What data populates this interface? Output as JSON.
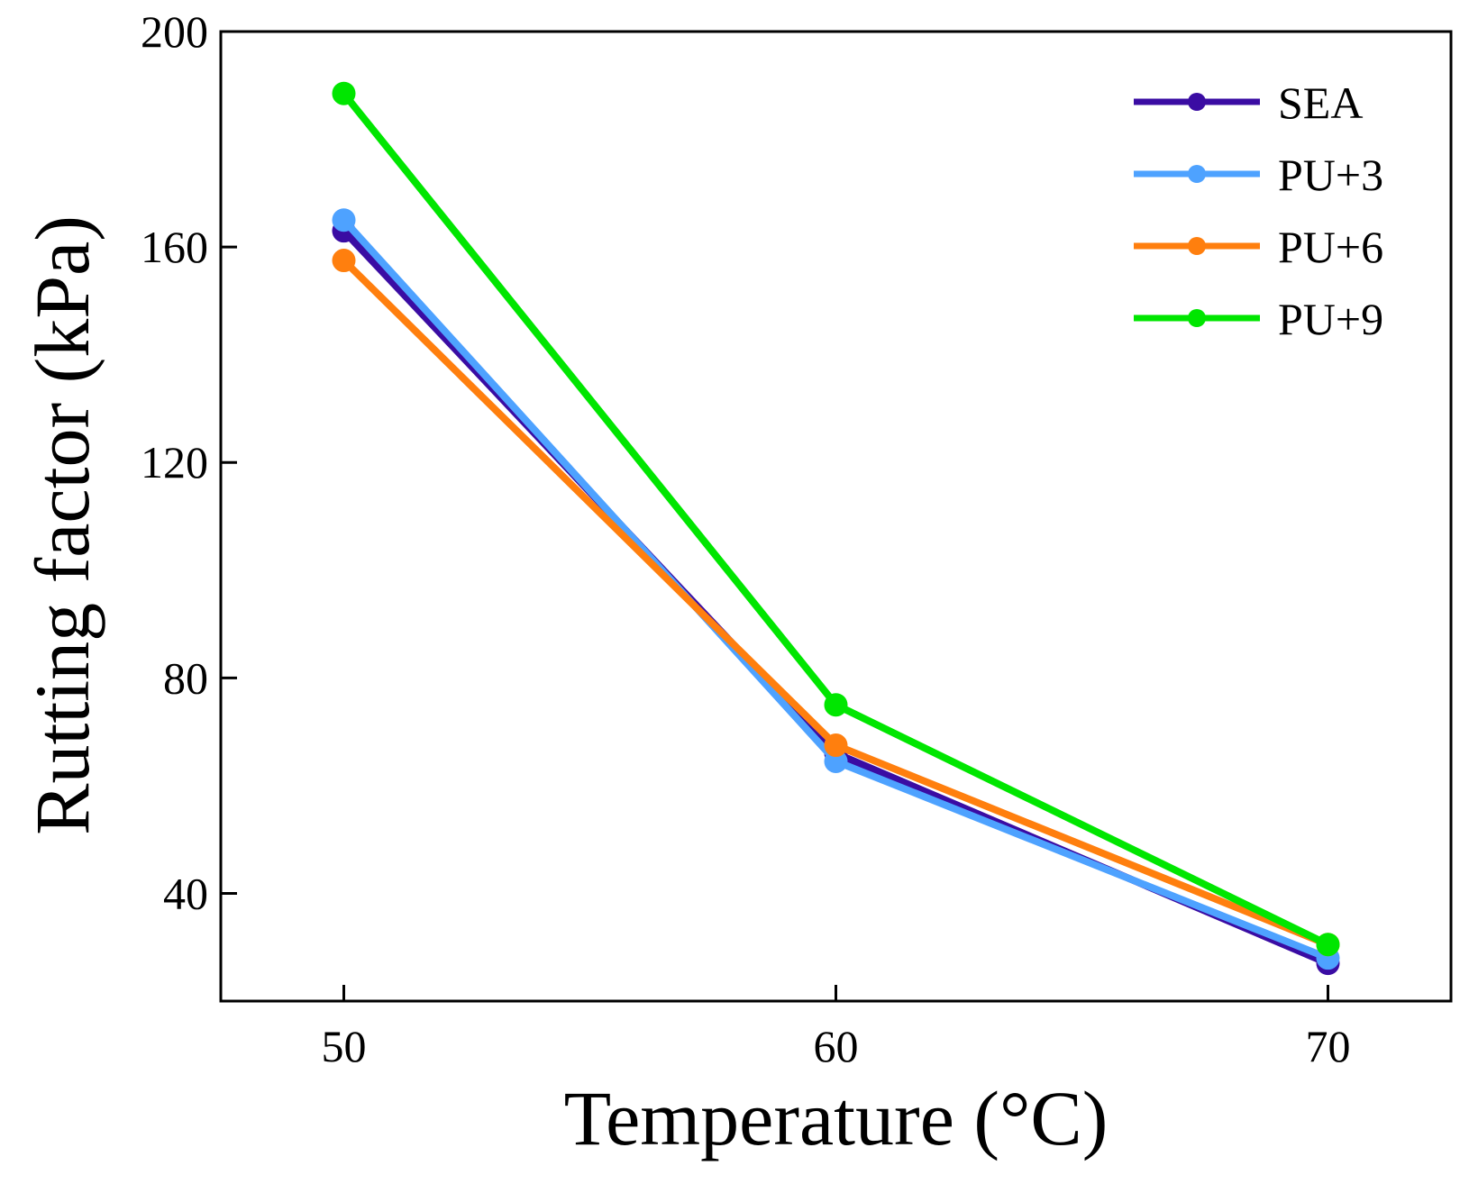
{
  "chart_data": {
    "type": "line",
    "title": "",
    "xlabel": "Temperature (°C)",
    "ylabel": "Rutting factor (kPa)",
    "x": [
      50,
      60,
      70
    ],
    "x_ticks": [
      "50",
      "60",
      "70"
    ],
    "xlim": [
      47.5,
      72.5
    ],
    "ylim": [
      20,
      200
    ],
    "y_ticks": [
      "40",
      "80",
      "120",
      "160",
      "200"
    ],
    "y_tick_values": [
      40,
      80,
      120,
      160,
      200
    ],
    "grid": false,
    "legend_position": "top-right",
    "series": [
      {
        "name": "SEA",
        "color": "#3a0ca3",
        "values": [
          163,
          66,
          27
        ]
      },
      {
        "name": "PU+3",
        "color": "#4ea2ff",
        "values": [
          165,
          64.5,
          28
        ]
      },
      {
        "name": "PU+6",
        "color": "#ff7f0e",
        "values": [
          157.5,
          67.5,
          30.5
        ]
      },
      {
        "name": "PU+9",
        "color": "#00e600",
        "values": [
          188.5,
          75,
          30.5
        ]
      }
    ]
  }
}
